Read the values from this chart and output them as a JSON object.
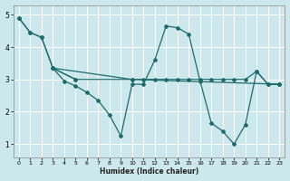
{
  "xlabel": "Humidex (Indice chaleur)",
  "bg_color": "#cce8ec",
  "grid_color": "#ffffff",
  "line_color": "#1e6b6b",
  "xlim": [
    -0.5,
    23.5
  ],
  "ylim": [
    0.6,
    5.3
  ],
  "yticks": [
    1,
    2,
    3,
    4,
    5
  ],
  "xticks": [
    0,
    1,
    2,
    3,
    4,
    5,
    6,
    7,
    8,
    9,
    10,
    11,
    12,
    13,
    14,
    15,
    16,
    17,
    18,
    19,
    20,
    21,
    22,
    23
  ],
  "line1": {
    "x": [
      0,
      1,
      2,
      3,
      4,
      5,
      6,
      7,
      8,
      9,
      10,
      11,
      12,
      13,
      14,
      15,
      16,
      17,
      18,
      19,
      20,
      21,
      22,
      23
    ],
    "y": [
      4.9,
      4.45,
      4.3,
      3.35,
      2.95,
      2.8,
      2.6,
      2.35,
      1.9,
      1.25,
      2.85,
      2.85,
      3.6,
      4.65,
      4.6,
      4.4,
      2.95,
      1.65,
      1.4,
      1.0,
      1.6,
      3.25,
      2.85,
      2.85
    ]
  },
  "line2": {
    "x": [
      0,
      1,
      2,
      3,
      10,
      23
    ],
    "y": [
      4.9,
      4.45,
      4.3,
      3.35,
      3.0,
      2.85
    ]
  },
  "line3": {
    "x": [
      3,
      5,
      10,
      11,
      12,
      13,
      14,
      15,
      16,
      17,
      18,
      19,
      20,
      21,
      22,
      23
    ],
    "y": [
      3.35,
      3.0,
      3.0,
      3.0,
      3.0,
      3.0,
      3.0,
      3.0,
      3.0,
      3.0,
      3.0,
      3.0,
      3.0,
      3.25,
      2.85,
      2.85
    ]
  },
  "line4": {
    "x": [
      3,
      5
    ],
    "y": [
      3.35,
      3.0
    ]
  }
}
